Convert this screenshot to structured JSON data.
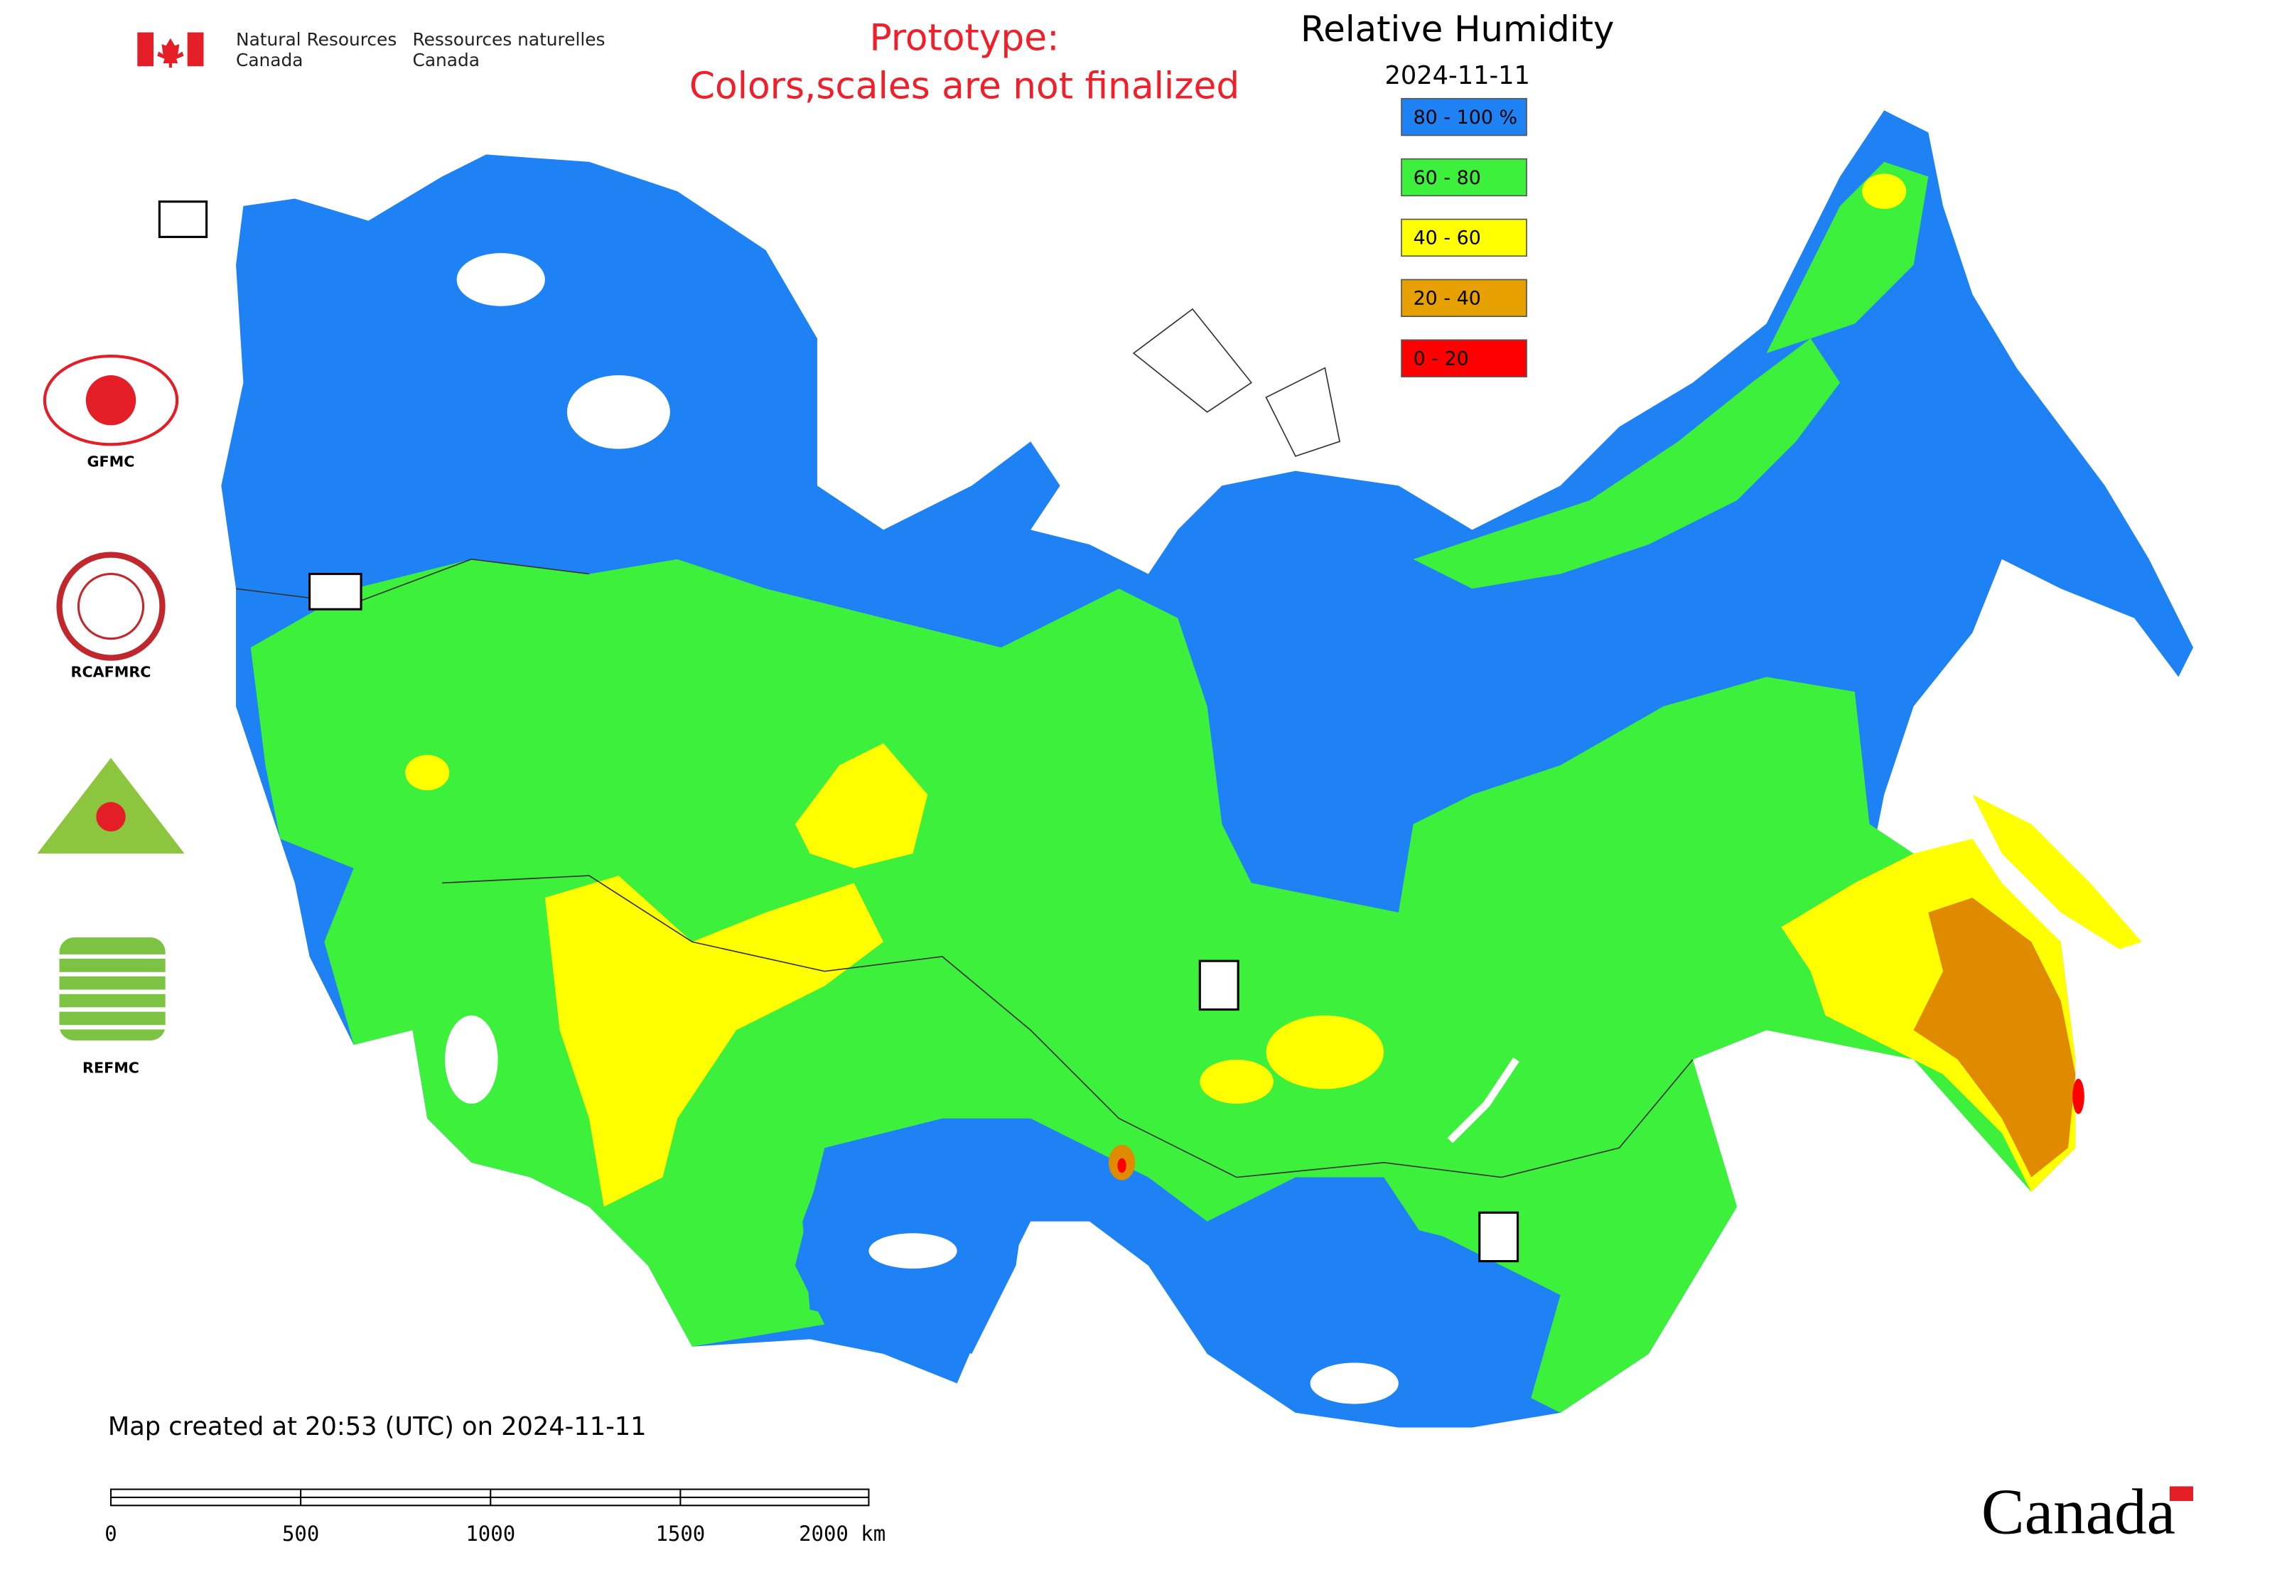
{
  "header": {
    "dept_en": [
      "Natural Resources",
      "Canada"
    ],
    "dept_fr": [
      "Ressources naturelles",
      "Canada"
    ],
    "notice": [
      "Prototype:",
      "Colors,scales are not finalized"
    ]
  },
  "map": {
    "title": "Relative Humidity",
    "date": "2024-11-11",
    "legend": [
      {
        "label": "80 - 100 %",
        "color": "#1e82f5"
      },
      {
        "label": "60 - 80",
        "color": "#3cf03c"
      },
      {
        "label": "40 - 60",
        "color": "#ffff00"
      },
      {
        "label": "20 - 40",
        "color": "#e6a000"
      },
      {
        "label": "0 - 20",
        "color": "#ff0000"
      }
    ],
    "logos": [
      "GFMC",
      "RCAFMRC",
      "REFMC"
    ],
    "footer": "Map created at 20:53 (UTC) on 2024-11-11",
    "scale_labels": [
      "0",
      "500",
      "1000",
      "1500",
      "2000 km"
    ],
    "wordmark": "Canada"
  }
}
